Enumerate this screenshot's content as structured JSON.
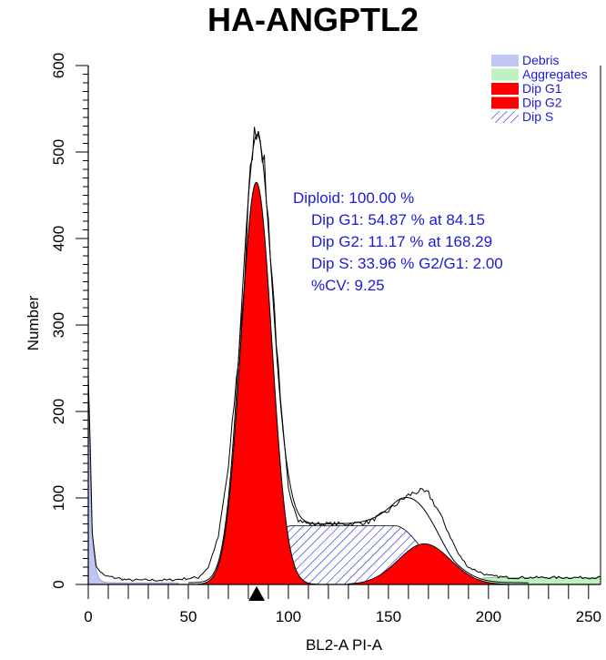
{
  "chart_data": {
    "type": "area",
    "title": "HA-ANGPTL2",
    "xlabel": "BL2-A PI-A",
    "ylabel": "Number",
    "xlim": [
      0,
      256
    ],
    "ylim": [
      0,
      600
    ],
    "x_ticks": [
      0,
      50,
      100,
      150,
      200,
      250
    ],
    "y_ticks": [
      0,
      100,
      200,
      300,
      400,
      500,
      600
    ],
    "grid": false,
    "legend_position": "top-right",
    "legend": [
      {
        "label": "Debris",
        "color": "#c0c6f4",
        "pattern": "solid"
      },
      {
        "label": "Aggregates",
        "color": "#bff2c0",
        "pattern": "solid"
      },
      {
        "label": "Dip G1",
        "color": "#ff0000",
        "pattern": "solid"
      },
      {
        "label": "Dip G2",
        "color": "#ff0000",
        "pattern": "solid"
      },
      {
        "label": "Dip S",
        "color": "#1a1adb",
        "pattern": "hatch"
      }
    ],
    "annotations": [
      "Diploid: 100.00 %",
      "Dip G1: 54.87 % at 84.15",
      "Dip G2: 11.17 % at 168.29",
      "Dip S: 33.96 %   G2/G1: 2.00",
      "%CV: 9.25"
    ],
    "marker": {
      "shape": "triangle",
      "x": 84.15
    },
    "series": [
      {
        "name": "Dip G1",
        "model": "gaussian",
        "peak_x": 84,
        "peak_y": 465,
        "sigma": 7.7
      },
      {
        "name": "Dip G2",
        "model": "gaussian",
        "peak_x": 168,
        "peak_y": 47,
        "sigma": 13
      },
      {
        "name": "Dip S",
        "model": "plateau",
        "x_start": 78,
        "x_end": 185,
        "peak_y": 68
      },
      {
        "name": "Debris",
        "model": "decay",
        "x_start": 0,
        "x_end": 45,
        "peak_y": 250
      },
      {
        "name": "Aggregates",
        "model": "flat",
        "x_start": 190,
        "x_end": 256,
        "y": 8
      }
    ],
    "envelope": {
      "x": [
        0,
        2,
        4,
        8,
        20,
        40,
        55,
        60,
        65,
        70,
        75,
        78,
        80,
        82,
        84,
        86,
        88,
        90,
        93,
        96,
        100,
        105,
        110,
        120,
        130,
        140,
        150,
        155,
        160,
        165,
        170,
        175,
        180,
        185,
        190,
        200,
        210,
        230,
        256
      ],
      "y": [
        250,
        60,
        20,
        10,
        5,
        5,
        8,
        20,
        55,
        135,
        260,
        350,
        440,
        505,
        530,
        525,
        480,
        420,
        320,
        210,
        110,
        75,
        70,
        70,
        70,
        72,
        85,
        95,
        103,
        108,
        105,
        85,
        60,
        35,
        20,
        10,
        8,
        8,
        8
      ]
    }
  }
}
